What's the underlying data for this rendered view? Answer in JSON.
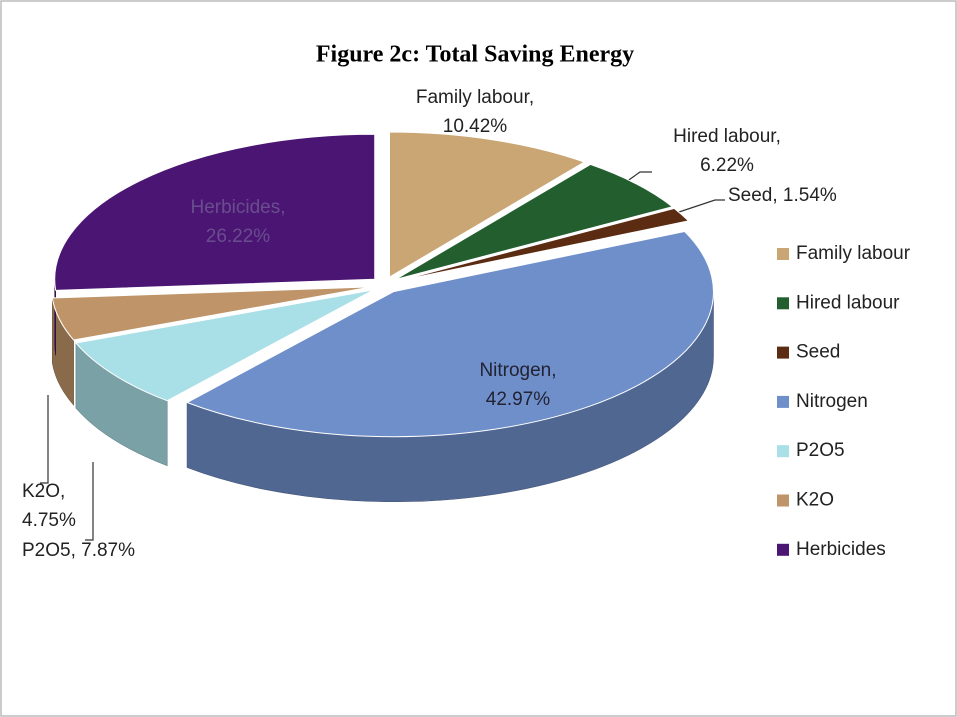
{
  "chart_data": {
    "type": "pie",
    "title": "Figure 2c: Total Saving Energy",
    "categories": [
      "Family labour",
      "Hired labour",
      "Seed",
      "Nitrogen",
      "P2O5",
      "K2O",
      "Herbicides"
    ],
    "values": [
      10.42,
      6.22,
      1.54,
      42.97,
      7.87,
      4.75,
      26.22
    ],
    "value_labels": [
      "Family labour, 10.42%",
      "Hired labour, 6.22%",
      "Seed, 1.54%",
      "Nitrogen, 42.97%",
      "P2O5, 7.87%",
      "K2O, 4.75%",
      "Herbicides, 26.22%"
    ],
    "colors": [
      "#c9a674",
      "#235e2e",
      "#5b2c12",
      "#6f8fcb",
      "#a9dfe6",
      "#be9468",
      "#4b1673"
    ],
    "legend": "right"
  }
}
